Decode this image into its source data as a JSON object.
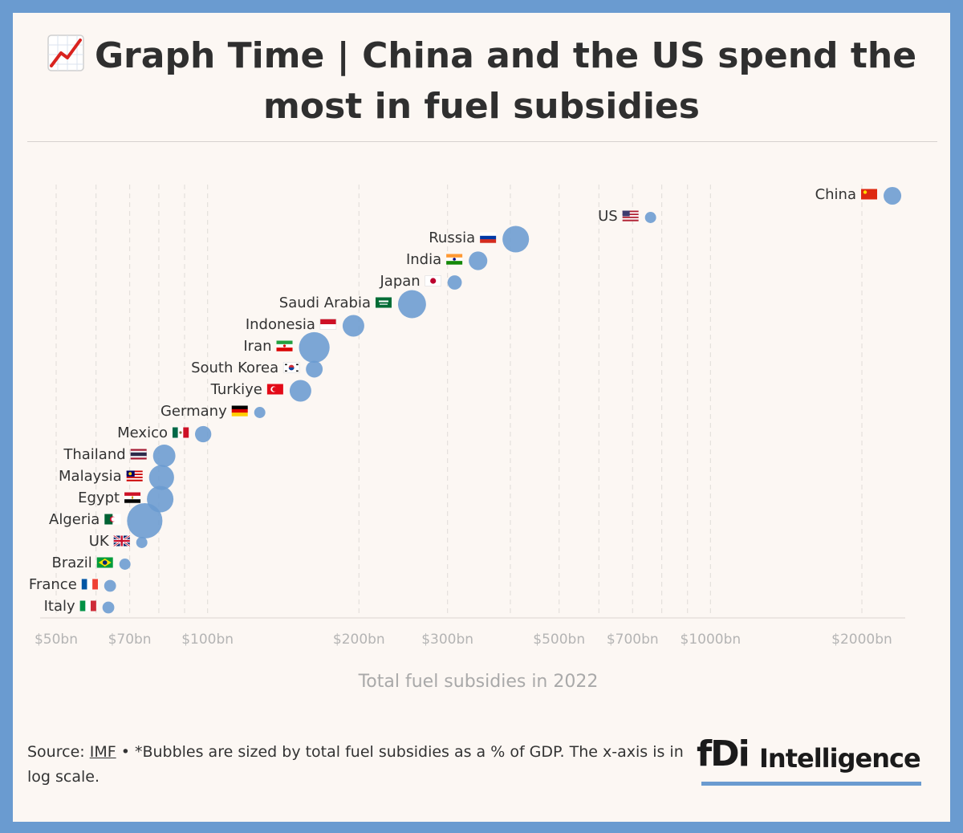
{
  "header": {
    "title": "Graph Time | China and the US spend the most in fuel subsidies",
    "title_icon": "chart-increasing-icon"
  },
  "footer": {
    "source_prefix": "Source:",
    "source_link": "IMF",
    "source_rest": "• *Bubbles are sized by total fuel subsidies as a % of GDP. The x-axis is in log scale."
  },
  "logo": {
    "mark": "fDi",
    "word": "Intelligence"
  },
  "colors": {
    "frame": "#6a9bd0",
    "background": "#fcf7f3",
    "bubble": "#6a9bd0",
    "text": "#333333",
    "axis_text": "#b4b4b4"
  },
  "chart_data": {
    "type": "scatter",
    "title": "Graph Time | China and the US spend the most in fuel subsidies",
    "xlabel": "Total fuel subsidies in 2022",
    "ylabel": "",
    "x_scale": "log",
    "xlim": [
      50,
      2500
    ],
    "x_ticks": [
      50,
      70,
      100,
      200,
      300,
      500,
      700,
      1000,
      2000
    ],
    "x_tick_labels": [
      "$50bn",
      "$70bn",
      "$100bn",
      "$200bn",
      "$300bn",
      "$500bn",
      "$700bn",
      "$1000bn",
      "$2000bn"
    ],
    "grid": "vertical dashed",
    "bubble_size": "total fuel subsidies as a % of GDP",
    "points": [
      {
        "label": "China",
        "flag": "flag-china-icon",
        "x": 2300,
        "size": 2.0
      },
      {
        "label": "US",
        "flag": "flag-us-icon",
        "x": 760,
        "size": 0.8
      },
      {
        "label": "Russia",
        "flag": "flag-russia-icon",
        "x": 410,
        "size": 4.5
      },
      {
        "label": "India",
        "flag": "flag-india-icon",
        "x": 345,
        "size": 2.2
      },
      {
        "label": "Japan",
        "flag": "flag-japan-icon",
        "x": 310,
        "size": 1.3
      },
      {
        "label": "Saudi Arabia",
        "flag": "flag-saudi-arabia-icon",
        "x": 255,
        "size": 5.0
      },
      {
        "label": "Indonesia",
        "flag": "flag-indonesia-icon",
        "x": 195,
        "size": 3.0
      },
      {
        "label": "Iran",
        "flag": "flag-iran-icon",
        "x": 163,
        "size": 6.0
      },
      {
        "label": "South Korea",
        "flag": "flag-south-korea-icon",
        "x": 163,
        "size": 1.8
      },
      {
        "label": "Turkiye",
        "flag": "flag-turkiye-icon",
        "x": 153,
        "size": 3.0
      },
      {
        "label": "Germany",
        "flag": "flag-germany-icon",
        "x": 127,
        "size": 0.8
      },
      {
        "label": "Mexico",
        "flag": "flag-mexico-icon",
        "x": 98,
        "size": 1.7
      },
      {
        "label": "Thailand",
        "flag": "flag-thailand-icon",
        "x": 82,
        "size": 3.2
      },
      {
        "label": "Malaysia",
        "flag": "flag-malaysia-icon",
        "x": 81,
        "size": 4.0
      },
      {
        "label": "Egypt",
        "flag": "flag-egypt-icon",
        "x": 80.5,
        "size": 4.5
      },
      {
        "label": "Algeria",
        "flag": "flag-algeria-icon",
        "x": 75,
        "size": 8.0
      },
      {
        "label": "UK",
        "flag": "flag-uk-icon",
        "x": 74,
        "size": 0.8
      },
      {
        "label": "Brazil",
        "flag": "flag-brazil-icon",
        "x": 68.5,
        "size": 0.8
      },
      {
        "label": "France",
        "flag": "flag-france-icon",
        "x": 64,
        "size": 0.9
      },
      {
        "label": "Italy",
        "flag": "flag-italy-icon",
        "x": 63.5,
        "size": 0.9
      }
    ]
  }
}
